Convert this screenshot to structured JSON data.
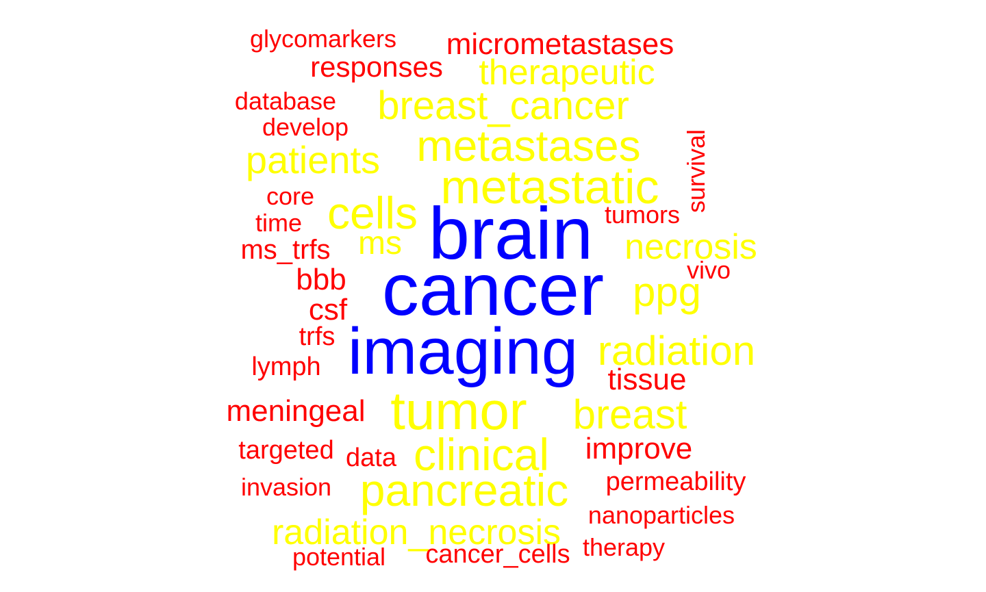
{
  "colors": {
    "high": "#0000ff",
    "mid": "#ffff00",
    "low": "#ff0000",
    "background": "#ffffff"
  },
  "words": [
    {
      "text": "glycomarkers",
      "tier": "low"
    },
    {
      "text": "micrometastases",
      "tier": "low"
    },
    {
      "text": "responses",
      "tier": "low"
    },
    {
      "text": "therapeutic",
      "tier": "mid"
    },
    {
      "text": "database",
      "tier": "low"
    },
    {
      "text": "breast_cancer",
      "tier": "mid"
    },
    {
      "text": "develop",
      "tier": "low"
    },
    {
      "text": "metastases",
      "tier": "mid"
    },
    {
      "text": "survival",
      "tier": "low"
    },
    {
      "text": "patients",
      "tier": "mid"
    },
    {
      "text": "metastatic",
      "tier": "mid"
    },
    {
      "text": "core",
      "tier": "low"
    },
    {
      "text": "cells",
      "tier": "mid"
    },
    {
      "text": "tumors",
      "tier": "low"
    },
    {
      "text": "time",
      "tier": "low"
    },
    {
      "text": "brain",
      "tier": "high"
    },
    {
      "text": "ms",
      "tier": "mid"
    },
    {
      "text": "ms_trfs",
      "tier": "low"
    },
    {
      "text": "necrosis",
      "tier": "mid"
    },
    {
      "text": "vivo",
      "tier": "low"
    },
    {
      "text": "bbb",
      "tier": "low"
    },
    {
      "text": "cancer",
      "tier": "high"
    },
    {
      "text": "ppg",
      "tier": "mid"
    },
    {
      "text": "csf",
      "tier": "low"
    },
    {
      "text": "trfs",
      "tier": "low"
    },
    {
      "text": "imaging",
      "tier": "high"
    },
    {
      "text": "radiation",
      "tier": "mid"
    },
    {
      "text": "lymph",
      "tier": "low"
    },
    {
      "text": "tissue",
      "tier": "low"
    },
    {
      "text": "meningeal",
      "tier": "low"
    },
    {
      "text": "tumor",
      "tier": "mid"
    },
    {
      "text": "breast",
      "tier": "mid"
    },
    {
      "text": "targeted",
      "tier": "low"
    },
    {
      "text": "data",
      "tier": "low"
    },
    {
      "text": "clinical",
      "tier": "mid"
    },
    {
      "text": "improve",
      "tier": "low"
    },
    {
      "text": "invasion",
      "tier": "low"
    },
    {
      "text": "pancreatic",
      "tier": "mid"
    },
    {
      "text": "permeability",
      "tier": "low"
    },
    {
      "text": "nanoparticles",
      "tier": "low"
    },
    {
      "text": "radiation_necrosis",
      "tier": "mid"
    },
    {
      "text": "therapy",
      "tier": "low"
    },
    {
      "text": "potential",
      "tier": "low"
    },
    {
      "text": "cancer_cells",
      "tier": "low"
    }
  ]
}
